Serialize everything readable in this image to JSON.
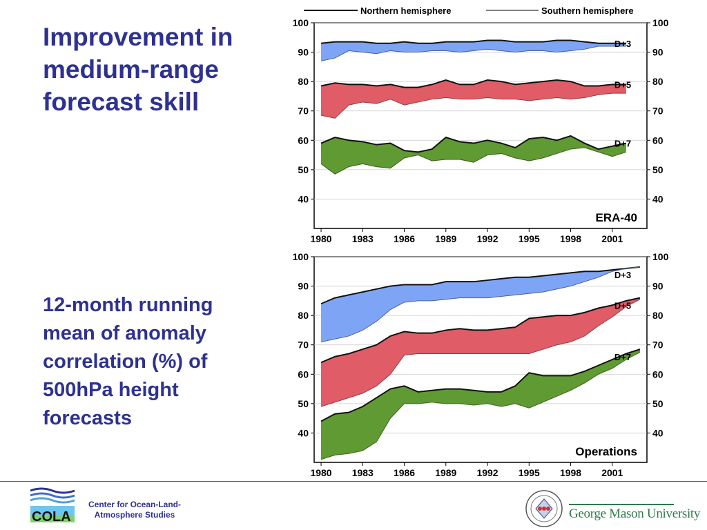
{
  "slide": {
    "title": "Improvement in medium-range forecast skill",
    "subtitle": "12-month running mean of anomaly correlation (%) of 500hPa height forecasts"
  },
  "legend": {
    "northern": "Northern hemisphere",
    "southern": "Southern hemisphere"
  },
  "footer": {
    "cola_logo_text": "COLA",
    "cola_name": "Center for Ocean-Land-Atmosphere Studies",
    "gmu_name": "George Mason University"
  },
  "colors": {
    "title": "#2e3192",
    "d3": "#7ea4f5",
    "d5": "#e05c66",
    "d7": "#5f9a32"
  },
  "chart_data": [
    {
      "type": "area",
      "title": "ERA-40",
      "ylim": [
        30,
        100
      ],
      "xlim": [
        1979.5,
        2003.5
      ],
      "yticks": [
        40,
        50,
        60,
        70,
        80,
        90,
        100
      ],
      "xticks": [
        "1980",
        "1983",
        "1986",
        "1989",
        "1992",
        "1995",
        "1998",
        "2001"
      ],
      "xtick_values": [
        1980,
        1983,
        1986,
        1989,
        1992,
        1995,
        1998,
        2001
      ],
      "grid": true,
      "x": [
        1980,
        1981,
        1982,
        1983,
        1984,
        1985,
        1986,
        1987,
        1988,
        1989,
        1990,
        1991,
        1992,
        1993,
        1994,
        1995,
        1996,
        1997,
        1998,
        1999,
        2000,
        2001,
        2002
      ],
      "series": [
        {
          "name": "D+3",
          "color": "#7ea4f5",
          "north": [
            93,
            93.5,
            93.5,
            93.5,
            93,
            93,
            93.5,
            93,
            93,
            93.5,
            93.5,
            93.5,
            94,
            94,
            93.5,
            93.5,
            93.5,
            94,
            94,
            93.5,
            93,
            93,
            93
          ],
          "south": [
            87,
            88,
            90.5,
            90,
            89.5,
            90.5,
            90,
            90,
            90.5,
            90.5,
            90,
            90.5,
            91,
            90.5,
            90,
            90.5,
            90.5,
            90,
            90.5,
            91,
            92,
            92,
            92
          ]
        },
        {
          "name": "D+5",
          "color": "#e05c66",
          "north": [
            78.5,
            79.5,
            79,
            79,
            78.5,
            79,
            78,
            78,
            79,
            80.5,
            79,
            79,
            80.5,
            80,
            79,
            79.5,
            80,
            80.5,
            80,
            78.5,
            78.5,
            79,
            79
          ]
        },
        {
          "name": "D+7",
          "color": "#5f9a32",
          "north": [
            59,
            61,
            60,
            59.5,
            58.5,
            59,
            56.5,
            56,
            57,
            61,
            59.5,
            59,
            60,
            59,
            57.5,
            60.5,
            61,
            60,
            61.5,
            59,
            57,
            58,
            59
          ],
          "south": [
            52,
            48.5,
            51,
            52,
            51,
            50.5,
            54,
            55,
            53,
            53.5,
            53.5,
            52.5,
            55,
            55.5,
            54,
            53,
            54,
            55.5,
            57,
            57.5,
            56,
            54.5,
            56
          ]
        }
      ]
    },
    {
      "type": "area",
      "title": "Operations",
      "ylim": [
        30,
        100
      ],
      "xlim": [
        1979.5,
        2003.5
      ],
      "yticks": [
        40,
        50,
        60,
        70,
        80,
        90,
        100
      ],
      "xticks": [
        "1980",
        "1983",
        "1986",
        "1989",
        "1992",
        "1995",
        "1998",
        "2001"
      ],
      "xtick_values": [
        1980,
        1983,
        1986,
        1989,
        1992,
        1995,
        1998,
        2001
      ],
      "grid": true,
      "x": [
        1980,
        1981,
        1982,
        1983,
        1984,
        1985,
        1986,
        1987,
        1988,
        1989,
        1990,
        1991,
        1992,
        1993,
        1994,
        1995,
        1996,
        1997,
        1998,
        1999,
        2000,
        2001,
        2002,
        2003
      ],
      "series": [
        {
          "name": "D+3",
          "color": "#7ea4f5",
          "north": [
            84,
            86,
            87,
            88,
            89,
            90,
            90.5,
            90.5,
            90.5,
            91.5,
            91.5,
            91.5,
            92,
            92.5,
            93,
            93,
            93.5,
            94,
            94.5,
            95,
            95,
            95.5,
            96,
            96.5
          ],
          "south": [
            71,
            72,
            73,
            75,
            78,
            82,
            84.5,
            85,
            85,
            85.5,
            86,
            86,
            86,
            86.5,
            87,
            87.5,
            88,
            89,
            90,
            91.5,
            93,
            95,
            96,
            96.5
          ]
        },
        {
          "name": "D+5",
          "color": "#e05c66",
          "north": [
            64,
            66,
            67,
            68.5,
            70,
            73,
            74.5,
            74,
            74,
            75,
            75.5,
            75,
            75,
            75.5,
            76,
            79,
            79.5,
            80,
            80,
            81,
            82.5,
            83.5,
            85,
            86
          ]
        },
        {
          "name": "D+7",
          "color": "#5f9a32",
          "north": [
            44,
            46.5,
            47,
            49,
            52,
            55,
            56,
            54,
            54.5,
            55,
            55,
            54.5,
            54,
            54,
            56,
            60.5,
            59.5,
            59.5,
            59.5,
            61,
            63,
            65,
            67,
            68.5
          ]
        }
      ]
    }
  ]
}
